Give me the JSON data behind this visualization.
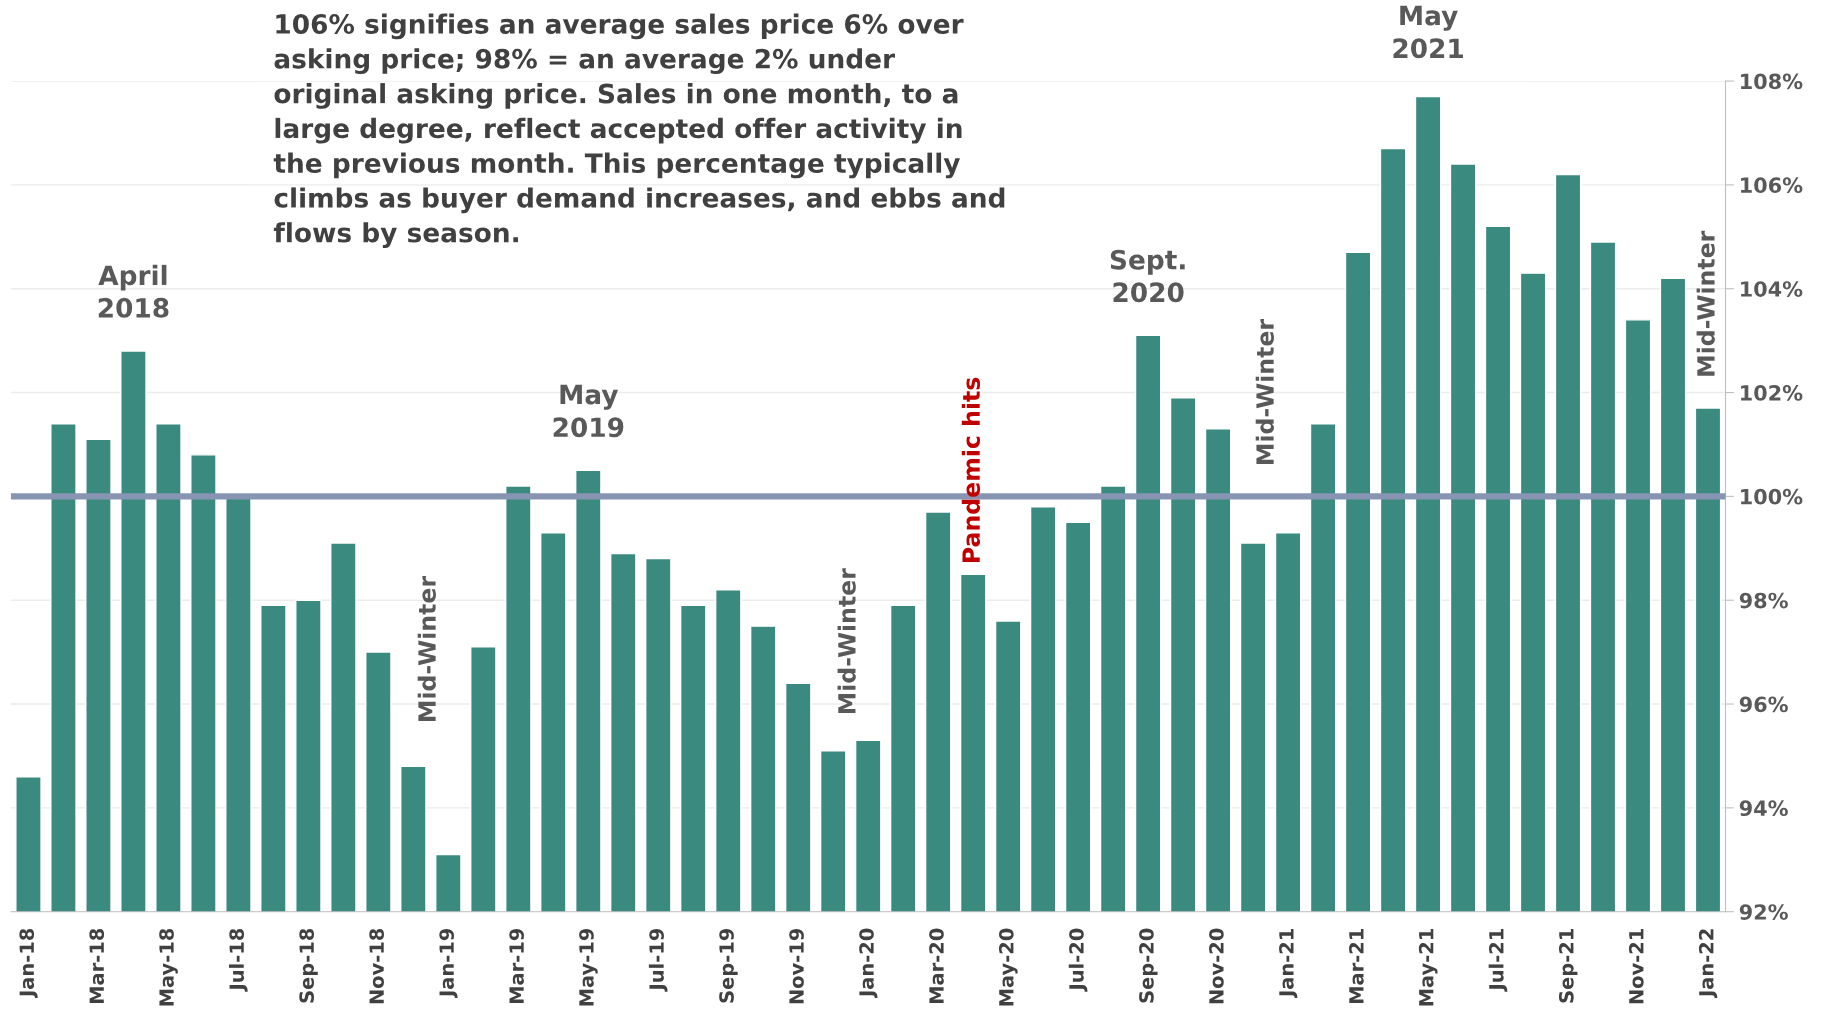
{
  "chart_data": {
    "type": "bar",
    "categories": [
      "Jan-18",
      null,
      "Mar-18",
      null,
      "May-18",
      null,
      "Jul-18",
      null,
      "Sep-18",
      null,
      "Nov-18",
      null,
      "Jan-19",
      null,
      "Mar-19",
      null,
      "May-19",
      null,
      "Jul-19",
      null,
      "Sep-19",
      null,
      "Nov-19",
      null,
      "Jan-20",
      null,
      "Mar-20",
      null,
      "May-20",
      null,
      "Jul-20",
      null,
      "Sep-20",
      null,
      "Nov-20",
      null,
      "Jan-21",
      null,
      "Mar-21",
      null,
      "May-21",
      null,
      "Jul-21",
      null,
      "Sep-21",
      null,
      "Nov-21",
      null,
      "Jan-22"
    ],
    "values": [
      94.6,
      101.4,
      101.1,
      102.8,
      101.4,
      100.8,
      100.0,
      97.9,
      98.0,
      99.1,
      97.0,
      94.8,
      93.1,
      97.1,
      100.2,
      99.3,
      100.5,
      98.9,
      98.8,
      97.9,
      98.2,
      97.5,
      96.4,
      95.1,
      95.3,
      97.9,
      99.7,
      98.5,
      97.6,
      99.8,
      99.5,
      100.2,
      103.1,
      101.9,
      101.3,
      99.1,
      99.3,
      101.4,
      104.7,
      106.7,
      107.7,
      106.4,
      105.2,
      104.3,
      106.2,
      104.9,
      103.4,
      104.2,
      101.7
    ],
    "color": "#3a8a80",
    "ylim": [
      92,
      108
    ],
    "yticks": [
      {
        "value": 92,
        "label": "92%"
      },
      {
        "value": 94,
        "label": "94%"
      },
      {
        "value": 96,
        "label": "96%"
      },
      {
        "value": 98,
        "label": "98%"
      },
      {
        "value": 100,
        "label": "100%"
      },
      {
        "value": 102,
        "label": "102%"
      },
      {
        "value": 104,
        "label": "104%"
      },
      {
        "value": 106,
        "label": "106%"
      },
      {
        "value": 108,
        "label": "108%"
      }
    ],
    "grid": "y",
    "ref_lines": [
      {
        "axis": "y",
        "value": 100,
        "color": "#8795b3"
      }
    ],
    "annotations": [
      "106% signifies an average sales price 6% over asking price; 98% = an average 2% under original asking price. Sales in one month, to a large degree, reflect accepted offer activity in the previous month. This percentage typically climbs as buyer demand increases, and ebbs and flows by season.",
      "April\n2018",
      "May\n2019",
      "Sept.\n2020",
      "May\n2021",
      "Mid-Winter",
      "Mid-Winter",
      "Pandemic hits",
      "Mid-Winter",
      "Mid-Winter"
    ]
  }
}
